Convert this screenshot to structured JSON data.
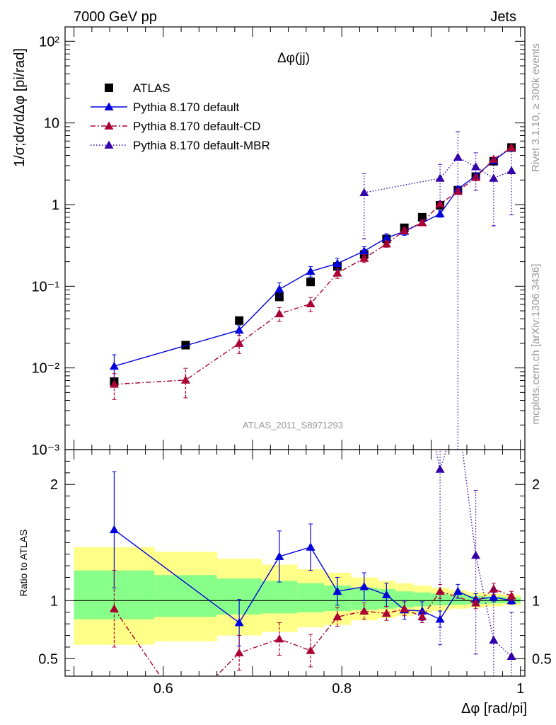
{
  "header": {
    "left": "7000 GeV pp",
    "right": "Jets"
  },
  "side_labels": {
    "top": "Rivet 3.1.10, ≥ 300k events",
    "bottom": "mcplots.cern.ch [arXiv:1306.3436]"
  },
  "panel_title": "Δφ(jj)",
  "analysis_id": "ATLAS_2011_S8971293",
  "colors": {
    "data": "#000000",
    "default": "#0000dd",
    "cd": "#aa0033",
    "mbr": "#3300aa",
    "band_inner": "#88ff88",
    "band_outer": "#ffff88"
  },
  "chart_data": [
    {
      "type": "line",
      "panel": "main",
      "ylabel": "1/σ;dσ/dΔφ [pi/rad]",
      "yscale": "log",
      "ylim": [
        0.001,
        150
      ],
      "xlim": [
        0.49,
        1.005
      ],
      "y_tick_labels": [
        "10⁻³",
        "10⁻²",
        "10⁻¹",
        "1",
        "10",
        "10²"
      ],
      "legend": {
        "placement": "top-left",
        "entries": [
          "ATLAS",
          "Pythia 8.170 default",
          "Pythia 8.170 default-CD",
          "Pythia 8.170 default-MBR"
        ]
      },
      "series": [
        {
          "name": "ATLAS",
          "style": "markers",
          "x": [
            0.545,
            0.625,
            0.685,
            0.73,
            0.765,
            0.795,
            0.825,
            0.85,
            0.87,
            0.89,
            0.91,
            0.93,
            0.95,
            0.97,
            0.99
          ],
          "y": [
            0.0068,
            0.019,
            0.038,
            0.074,
            0.113,
            0.175,
            0.245,
            0.38,
            0.52,
            0.7,
            0.98,
            1.5,
            2.2,
            3.4,
            5.0
          ]
        },
        {
          "name": "Pythia 8.170 default",
          "style": "solid",
          "x": [
            0.545,
            0.625,
            0.685,
            0.73,
            0.765,
            0.795,
            0.825,
            0.85,
            0.87,
            0.89,
            0.91,
            0.93,
            0.95,
            0.97,
            0.99
          ],
          "y": [
            0.0105,
            null,
            0.029,
            0.092,
            0.152,
            0.19,
            0.27,
            0.39,
            0.47,
            0.6,
            0.77,
            1.55,
            2.25,
            3.45,
            5.0
          ],
          "yerr": [
            0.004,
            null,
            0.004,
            0.018,
            0.022,
            0.03,
            0.035,
            0.05,
            0.05,
            0.05,
            0.07,
            0.12,
            0.15,
            0.2,
            0.25
          ]
        },
        {
          "name": "Pythia 8.170 default-CD",
          "style": "dash-dot",
          "x": [
            0.545,
            0.625,
            0.685,
            0.73,
            0.765,
            0.795,
            0.825,
            0.85,
            0.87,
            0.89,
            0.91,
            0.93,
            0.95,
            0.97,
            0.99
          ],
          "y": [
            0.0063,
            0.0071,
            0.02,
            0.046,
            0.061,
            0.145,
            0.22,
            0.33,
            0.48,
            0.6,
            1.02,
            1.45,
            2.15,
            3.6,
            5.0
          ],
          "yerr": [
            0.0022,
            0.0028,
            0.005,
            0.009,
            0.012,
            0.02,
            0.025,
            0.03,
            0.04,
            0.04,
            0.06,
            0.1,
            0.12,
            0.2,
            0.25
          ]
        },
        {
          "name": "Pythia 8.170 default-MBR",
          "style": "dotted",
          "x": [
            0.825,
            0.91,
            0.93,
            0.95,
            0.97,
            0.99
          ],
          "y": [
            1.4,
            2.1,
            3.8,
            2.9,
            2.1,
            2.6
          ],
          "ylo": [
            0.38,
            1.1,
            0.001,
            1.5,
            0.55,
            0.75
          ],
          "yhi": [
            2.4,
            3.1,
            7.8,
            4.3,
            3.7,
            4.5
          ]
        }
      ]
    },
    {
      "type": "line",
      "panel": "ratio",
      "ylabel": "Ratio to ATLAS",
      "xlabel": "Δφ [rad/pi]",
      "ylim": [
        0.35,
        2.3
      ],
      "xlim": [
        0.49,
        1.005
      ],
      "x_tick_labels": [
        "0.6",
        "0.8",
        "1"
      ],
      "y_tick_labels": [
        "0.5",
        "1",
        "2"
      ],
      "reference": 1,
      "bands": {
        "bin_edges": [
          0.5,
          0.59,
          0.66,
          0.71,
          0.75,
          0.78,
          0.81,
          0.84,
          0.86,
          0.88,
          0.9,
          0.92,
          0.94,
          0.96,
          0.98,
          1.0
        ],
        "inner_lo": [
          0.84,
          0.86,
          0.88,
          0.89,
          0.9,
          0.91,
          0.92,
          0.93,
          0.94,
          0.95,
          0.96,
          0.965,
          0.97,
          0.975,
          0.98
        ],
        "inner_hi": [
          1.26,
          1.22,
          1.19,
          1.17,
          1.15,
          1.13,
          1.11,
          1.1,
          1.08,
          1.07,
          1.06,
          1.05,
          1.04,
          1.035,
          1.03
        ],
        "outer_lo": [
          0.62,
          0.65,
          0.7,
          0.73,
          0.77,
          0.79,
          0.83,
          0.85,
          0.87,
          0.89,
          0.91,
          0.93,
          0.94,
          0.95,
          0.96
        ],
        "outer_hi": [
          1.46,
          1.42,
          1.36,
          1.31,
          1.27,
          1.24,
          1.2,
          1.17,
          1.15,
          1.13,
          1.11,
          1.09,
          1.07,
          1.06,
          1.05
        ]
      },
      "series": [
        {
          "name": "Pythia 8.170 default",
          "style": "solid",
          "x": [
            0.545,
            0.685,
            0.73,
            0.765,
            0.795,
            0.825,
            0.85,
            0.87,
            0.89,
            0.91,
            0.93,
            0.95,
            0.97,
            0.99
          ],
          "y": [
            1.61,
            0.81,
            1.38,
            1.46,
            1.08,
            1.12,
            1.05,
            0.92,
            0.91,
            0.84,
            1.08,
            1.01,
            1.03,
            1.0
          ],
          "yerr": [
            0.5,
            0.2,
            0.22,
            0.2,
            0.12,
            0.12,
            0.1,
            0.08,
            0.08,
            0.07,
            0.06,
            0.05,
            0.04,
            0.03
          ]
        },
        {
          "name": "Pythia 8.170 default-CD",
          "style": "dash-dot",
          "x": [
            0.545,
            0.685,
            0.73,
            0.765,
            0.795,
            0.825,
            0.85,
            0.87,
            0.89,
            0.91,
            0.93,
            0.95,
            0.97,
            0.99
          ],
          "y": [
            0.93,
            0.55,
            0.67,
            0.57,
            0.86,
            0.91,
            0.89,
            0.93,
            0.86,
            1.08,
            null,
            0.98,
            1.1,
            1.04
          ],
          "yerr": [
            0.33,
            0.15,
            0.14,
            0.14,
            0.08,
            0.07,
            0.06,
            0.06,
            0.05,
            0.06,
            null,
            0.05,
            0.05,
            0.04
          ]
        },
        {
          "name": "Pythia 8.170 default-MBR",
          "style": "dotted",
          "x": [
            0.91,
            0.95,
            0.97,
            0.99
          ],
          "y": [
            2.13,
            1.39,
            0.66,
            0.52
          ],
          "ylo": [
            0.62,
            0.54,
            0.35,
            0.35
          ],
          "yhi": [
            3.0,
            1.95,
            1.1,
            0.9
          ]
        }
      ]
    }
  ]
}
